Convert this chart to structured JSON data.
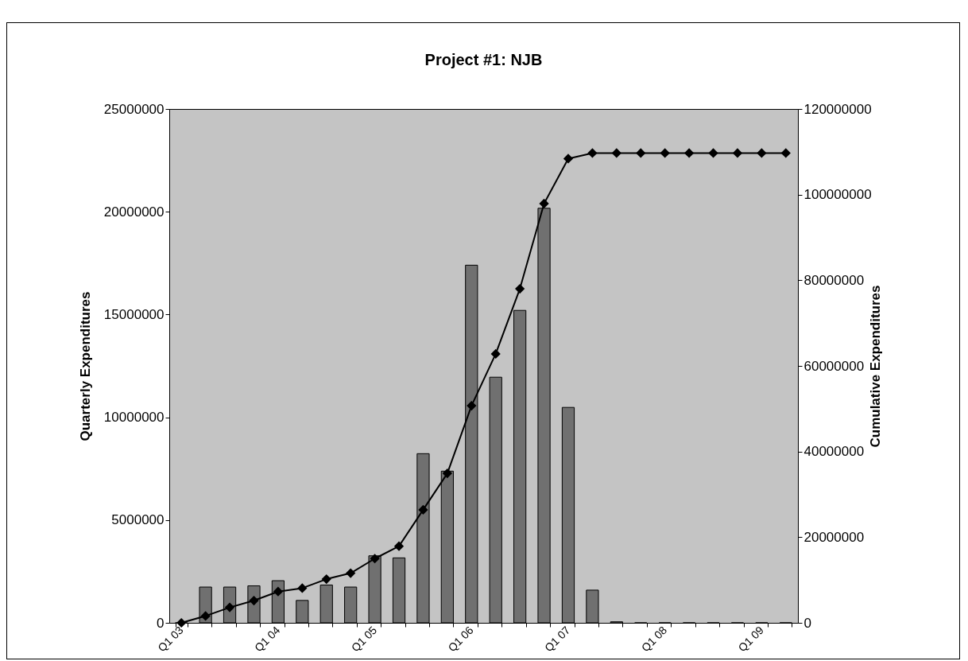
{
  "chart_data": {
    "type": "bar",
    "title": "Project #1: NJB",
    "ylabel": "Quarterly Expenditures",
    "y2label": "Cumulative Expenditures",
    "categories": [
      "Q1 03",
      null,
      null,
      null,
      "Q1 04",
      null,
      null,
      null,
      "Q1 05",
      null,
      null,
      null,
      "Q1 06",
      null,
      null,
      null,
      "Q1 07",
      null,
      null,
      null,
      "Q1 08",
      null,
      null,
      null,
      "Q1 09",
      null
    ],
    "series": [
      {
        "color": "#707070",
        "values": [
          0,
          1740000,
          1740000,
          1800000,
          2050000,
          1090000,
          1840000,
          1740000,
          3260000,
          3160000,
          8230000,
          7380000,
          17400000,
          11950000,
          15200000,
          20170000,
          10480000,
          1590000,
          50000,
          0,
          0,
          0,
          0,
          0,
          0,
          0
        ]
      },
      {
        "type": "line",
        "axis": "y2",
        "color": "#000000",
        "values": [
          0,
          1600000,
          3600000,
          5200000,
          7300000,
          8100000,
          10200000,
          11600000,
          15000000,
          17900000,
          26400000,
          34900000,
          50700000,
          62800000,
          78000000,
          97900000,
          108400000,
          109700000,
          109700000,
          109700000,
          109700000,
          109700000,
          109700000,
          109700000,
          109700000,
          109700000
        ]
      }
    ],
    "ylim": [
      0,
      25000000
    ],
    "yticks": [
      0,
      5000000,
      10000000,
      15000000,
      20000000,
      25000000
    ],
    "y2lim": [
      0,
      120000000
    ],
    "y2ticks": [
      0,
      20000000,
      40000000,
      60000000,
      80000000,
      100000000,
      120000000
    ],
    "marker": "diamond",
    "line_style": "solid",
    "grid": false
  }
}
